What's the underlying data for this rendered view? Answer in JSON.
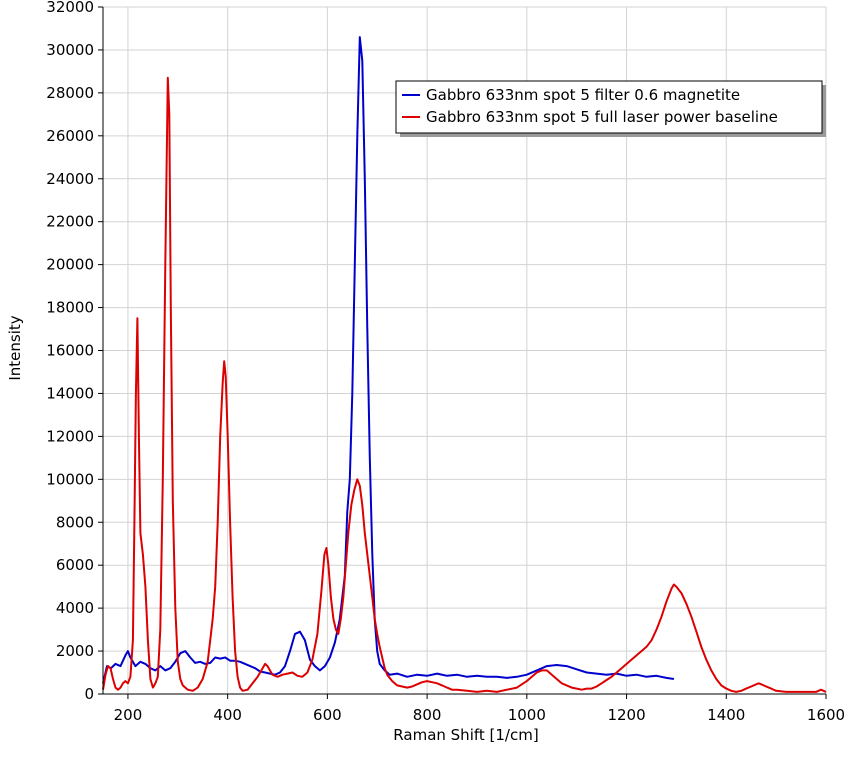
{
  "chart_data": {
    "type": "line",
    "title": "",
    "xlabel": "Raman Shift [1/cm]",
    "ylabel": "Intensity",
    "xlim": [
      150,
      1600
    ],
    "ylim": [
      0,
      32000
    ],
    "xticks": [
      200,
      400,
      600,
      800,
      1000,
      1200,
      1400,
      1600
    ],
    "yticks": [
      0,
      2000,
      4000,
      6000,
      8000,
      10000,
      12000,
      14000,
      16000,
      18000,
      20000,
      22000,
      24000,
      26000,
      28000,
      30000,
      32000
    ],
    "grid": true,
    "legend_position": "top-right",
    "series": [
      {
        "name": "Gabbro 633nm spot 5 filter 0.6 magnetite",
        "color": "#0000cc",
        "points": [
          [
            150,
            500
          ],
          [
            158,
            1300
          ],
          [
            166,
            1200
          ],
          [
            175,
            1400
          ],
          [
            185,
            1300
          ],
          [
            195,
            1800
          ],
          [
            200,
            2000
          ],
          [
            205,
            1700
          ],
          [
            215,
            1300
          ],
          [
            225,
            1500
          ],
          [
            235,
            1400
          ],
          [
            245,
            1200
          ],
          [
            255,
            1100
          ],
          [
            265,
            1300
          ],
          [
            275,
            1100
          ],
          [
            285,
            1200
          ],
          [
            295,
            1500
          ],
          [
            305,
            1900
          ],
          [
            315,
            2000
          ],
          [
            325,
            1700
          ],
          [
            335,
            1450
          ],
          [
            345,
            1500
          ],
          [
            355,
            1400
          ],
          [
            365,
            1450
          ],
          [
            375,
            1700
          ],
          [
            385,
            1650
          ],
          [
            395,
            1700
          ],
          [
            405,
            1550
          ],
          [
            415,
            1550
          ],
          [
            425,
            1500
          ],
          [
            435,
            1400
          ],
          [
            445,
            1300
          ],
          [
            455,
            1200
          ],
          [
            465,
            1050
          ],
          [
            475,
            1000
          ],
          [
            485,
            950
          ],
          [
            495,
            900
          ],
          [
            505,
            1000
          ],
          [
            515,
            1300
          ],
          [
            525,
            2000
          ],
          [
            535,
            2800
          ],
          [
            545,
            2900
          ],
          [
            555,
            2500
          ],
          [
            565,
            1600
          ],
          [
            575,
            1300
          ],
          [
            585,
            1100
          ],
          [
            595,
            1300
          ],
          [
            605,
            1700
          ],
          [
            615,
            2400
          ],
          [
            625,
            3500
          ],
          [
            635,
            5500
          ],
          [
            640,
            8500
          ],
          [
            645,
            10000
          ],
          [
            650,
            14000
          ],
          [
            655,
            20000
          ],
          [
            660,
            26000
          ],
          [
            665,
            30600
          ],
          [
            670,
            29500
          ],
          [
            675,
            24000
          ],
          [
            680,
            17000
          ],
          [
            685,
            11000
          ],
          [
            690,
            6500
          ],
          [
            695,
            3500
          ],
          [
            700,
            2000
          ],
          [
            705,
            1400
          ],
          [
            715,
            1100
          ],
          [
            725,
            900
          ],
          [
            740,
            950
          ],
          [
            760,
            800
          ],
          [
            780,
            900
          ],
          [
            800,
            850
          ],
          [
            820,
            950
          ],
          [
            840,
            850
          ],
          [
            860,
            900
          ],
          [
            880,
            800
          ],
          [
            900,
            850
          ],
          [
            920,
            800
          ],
          [
            940,
            800
          ],
          [
            960,
            750
          ],
          [
            980,
            800
          ],
          [
            1000,
            900
          ],
          [
            1020,
            1100
          ],
          [
            1040,
            1300
          ],
          [
            1060,
            1350
          ],
          [
            1080,
            1300
          ],
          [
            1100,
            1150
          ],
          [
            1120,
            1000
          ],
          [
            1140,
            950
          ],
          [
            1160,
            900
          ],
          [
            1180,
            950
          ],
          [
            1200,
            850
          ],
          [
            1220,
            900
          ],
          [
            1240,
            800
          ],
          [
            1260,
            850
          ],
          [
            1280,
            750
          ],
          [
            1295,
            700
          ]
        ]
      },
      {
        "name": "Gabbro 633nm spot 5 full laser power baseline",
        "color": "#dd0000",
        "points": [
          [
            150,
            200
          ],
          [
            155,
            900
          ],
          [
            160,
            1300
          ],
          [
            165,
            1200
          ],
          [
            170,
            700
          ],
          [
            175,
            300
          ],
          [
            180,
            200
          ],
          [
            185,
            300
          ],
          [
            190,
            500
          ],
          [
            195,
            600
          ],
          [
            200,
            500
          ],
          [
            205,
            800
          ],
          [
            210,
            2500
          ],
          [
            213,
            8000
          ],
          [
            216,
            14000
          ],
          [
            219,
            17500
          ],
          [
            222,
            12000
          ],
          [
            225,
            7500
          ],
          [
            230,
            6500
          ],
          [
            235,
            5000
          ],
          [
            240,
            2500
          ],
          [
            245,
            700
          ],
          [
            250,
            300
          ],
          [
            255,
            500
          ],
          [
            260,
            800
          ],
          [
            265,
            3000
          ],
          [
            270,
            10000
          ],
          [
            275,
            20000
          ],
          [
            280,
            28700
          ],
          [
            283,
            27000
          ],
          [
            286,
            18000
          ],
          [
            290,
            9000
          ],
          [
            295,
            4000
          ],
          [
            300,
            1500
          ],
          [
            305,
            700
          ],
          [
            310,
            400
          ],
          [
            320,
            200
          ],
          [
            330,
            150
          ],
          [
            340,
            300
          ],
          [
            350,
            700
          ],
          [
            360,
            1500
          ],
          [
            370,
            3500
          ],
          [
            375,
            5000
          ],
          [
            380,
            8000
          ],
          [
            385,
            12000
          ],
          [
            390,
            14500
          ],
          [
            393,
            15500
          ],
          [
            396,
            14800
          ],
          [
            400,
            12000
          ],
          [
            405,
            8000
          ],
          [
            410,
            4500
          ],
          [
            415,
            2000
          ],
          [
            420,
            800
          ],
          [
            425,
            300
          ],
          [
            430,
            150
          ],
          [
            440,
            200
          ],
          [
            450,
            500
          ],
          [
            460,
            800
          ],
          [
            470,
            1200
          ],
          [
            475,
            1400
          ],
          [
            480,
            1300
          ],
          [
            490,
            900
          ],
          [
            500,
            800
          ],
          [
            510,
            900
          ],
          [
            520,
            950
          ],
          [
            530,
            1000
          ],
          [
            540,
            850
          ],
          [
            550,
            800
          ],
          [
            560,
            1000
          ],
          [
            570,
            1600
          ],
          [
            580,
            2800
          ],
          [
            588,
            4800
          ],
          [
            594,
            6500
          ],
          [
            598,
            6800
          ],
          [
            602,
            6000
          ],
          [
            607,
            4500
          ],
          [
            612,
            3500
          ],
          [
            617,
            3000
          ],
          [
            622,
            2800
          ],
          [
            627,
            3500
          ],
          [
            632,
            4500
          ],
          [
            637,
            6000
          ],
          [
            642,
            7500
          ],
          [
            648,
            8800
          ],
          [
            654,
            9500
          ],
          [
            660,
            10000
          ],
          [
            665,
            9700
          ],
          [
            670,
            8800
          ],
          [
            675,
            7500
          ],
          [
            680,
            6500
          ],
          [
            685,
            5500
          ],
          [
            690,
            4500
          ],
          [
            695,
            3500
          ],
          [
            700,
            2800
          ],
          [
            705,
            2200
          ],
          [
            710,
            1700
          ],
          [
            715,
            1200
          ],
          [
            720,
            900
          ],
          [
            730,
            600
          ],
          [
            740,
            400
          ],
          [
            750,
            350
          ],
          [
            760,
            300
          ],
          [
            770,
            350
          ],
          [
            780,
            450
          ],
          [
            790,
            550
          ],
          [
            800,
            600
          ],
          [
            810,
            550
          ],
          [
            820,
            500
          ],
          [
            830,
            400
          ],
          [
            840,
            300
          ],
          [
            850,
            200
          ],
          [
            860,
            200
          ],
          [
            880,
            150
          ],
          [
            900,
            100
          ],
          [
            920,
            150
          ],
          [
            940,
            100
          ],
          [
            960,
            200
          ],
          [
            980,
            300
          ],
          [
            1000,
            600
          ],
          [
            1010,
            800
          ],
          [
            1020,
            1000
          ],
          [
            1030,
            1100
          ],
          [
            1040,
            1100
          ],
          [
            1050,
            900
          ],
          [
            1060,
            700
          ],
          [
            1070,
            500
          ],
          [
            1080,
            400
          ],
          [
            1090,
            300
          ],
          [
            1100,
            250
          ],
          [
            1110,
            200
          ],
          [
            1120,
            250
          ],
          [
            1130,
            250
          ],
          [
            1140,
            350
          ],
          [
            1150,
            500
          ],
          [
            1160,
            650
          ],
          [
            1170,
            800
          ],
          [
            1180,
            1000
          ],
          [
            1190,
            1200
          ],
          [
            1200,
            1400
          ],
          [
            1210,
            1600
          ],
          [
            1220,
            1800
          ],
          [
            1230,
            2000
          ],
          [
            1240,
            2200
          ],
          [
            1250,
            2500
          ],
          [
            1260,
            3000
          ],
          [
            1270,
            3600
          ],
          [
            1280,
            4300
          ],
          [
            1290,
            4900
          ],
          [
            1295,
            5100
          ],
          [
            1300,
            5000
          ],
          [
            1310,
            4700
          ],
          [
            1320,
            4200
          ],
          [
            1330,
            3600
          ],
          [
            1340,
            2900
          ],
          [
            1350,
            2200
          ],
          [
            1360,
            1600
          ],
          [
            1370,
            1100
          ],
          [
            1380,
            700
          ],
          [
            1390,
            400
          ],
          [
            1400,
            250
          ],
          [
            1410,
            150
          ],
          [
            1420,
            100
          ],
          [
            1430,
            150
          ],
          [
            1440,
            250
          ],
          [
            1450,
            350
          ],
          [
            1460,
            450
          ],
          [
            1465,
            500
          ],
          [
            1470,
            450
          ],
          [
            1480,
            350
          ],
          [
            1490,
            250
          ],
          [
            1500,
            150
          ],
          [
            1520,
            100
          ],
          [
            1540,
            100
          ],
          [
            1560,
            100
          ],
          [
            1580,
            100
          ],
          [
            1590,
            200
          ],
          [
            1600,
            100
          ]
        ]
      }
    ]
  }
}
